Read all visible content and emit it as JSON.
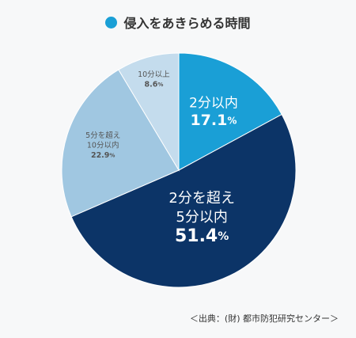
{
  "chart_data": {
    "type": "pie",
    "legend": [
      {
        "label": "侵入をあきらめる時間",
        "color": "#1a9fd6"
      }
    ],
    "slices": [
      {
        "label_lines": [
          "2分以内"
        ],
        "value": 17.1,
        "value_text": "17.1",
        "unit": "%",
        "color": "#1a9fd6",
        "text_color": "#ffffff"
      },
      {
        "label_lines": [
          "2分を超え",
          "5分以内"
        ],
        "value": 51.4,
        "value_text": "51.4",
        "unit": "%",
        "color": "#0c3467",
        "text_color": "#ffffff"
      },
      {
        "label_lines": [
          "5分を超え",
          "10分以内"
        ],
        "value": 22.9,
        "value_text": "22.9",
        "unit": "%",
        "color": "#a0c7e1",
        "text_color": "#555555"
      },
      {
        "label_lines": [
          "10分以上"
        ],
        "value": 8.6,
        "value_text": "8.6",
        "unit": "%",
        "color": "#c4dced",
        "text_color": "#555555"
      }
    ]
  },
  "source": "＜出典：(財) 都市防犯研究センター＞"
}
